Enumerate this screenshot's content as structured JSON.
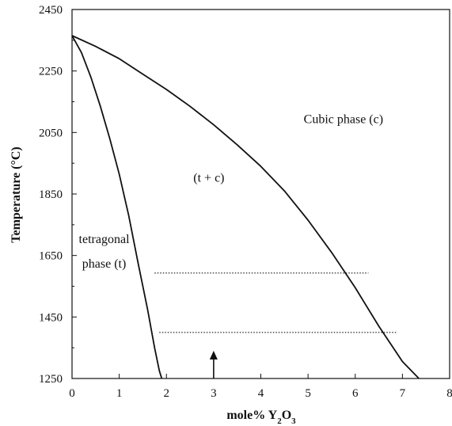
{
  "chart_data": {
    "type": "line",
    "title": "",
    "xlabel": {
      "main": "mole% Y",
      "sub1": "2",
      "mid": "O",
      "sub2": "3"
    },
    "ylabel": "Temperature (°C)",
    "xlim": [
      0,
      8
    ],
    "ylim": [
      1250,
      2450
    ],
    "x_ticks": [
      0,
      1,
      2,
      3,
      4,
      5,
      6,
      7,
      8
    ],
    "y_ticks": [
      1250,
      1450,
      1650,
      1850,
      2050,
      2250,
      2450
    ],
    "y_minor_step": 100,
    "grid": false,
    "series": [
      {
        "style": "solid",
        "x": [
          0.0,
          0.2,
          0.4,
          0.6,
          0.8,
          1.0,
          1.2,
          1.4,
          1.6,
          1.75,
          1.85,
          1.9
        ],
        "y": [
          2365,
          2310,
          2230,
          2135,
          2030,
          1915,
          1780,
          1625,
          1475,
          1350,
          1275,
          1250
        ]
      },
      {
        "style": "solid",
        "x": [
          0.0,
          0.5,
          1.0,
          1.5,
          2.0,
          2.5,
          3.0,
          3.5,
          4.0,
          4.5,
          5.0,
          5.5,
          6.0,
          6.5,
          7.0,
          7.35
        ],
        "y": [
          2365,
          2330,
          2290,
          2240,
          2190,
          2135,
          2075,
          2010,
          1940,
          1860,
          1765,
          1660,
          1545,
          1420,
          1305,
          1250
        ]
      },
      {
        "style": "dotted",
        "x": [
          1.75,
          6.28
        ],
        "y": [
          1593,
          1593
        ]
      },
      {
        "style": "dotted",
        "x": [
          1.85,
          6.9
        ],
        "y": [
          1400,
          1400
        ]
      }
    ],
    "annotations": [
      {
        "text": "Cubic phase (c)",
        "x": 5.75,
        "y": 2080
      },
      {
        "text": "(t + c)",
        "x": 2.9,
        "y": 1890
      },
      {
        "text": "tetragonal",
        "x": 0.68,
        "y": 1690
      },
      {
        "text": "phase (t)",
        "x": 0.68,
        "y": 1610
      }
    ],
    "arrow": {
      "x": 3.0,
      "y_from": 1250,
      "y_to": 1340
    }
  }
}
